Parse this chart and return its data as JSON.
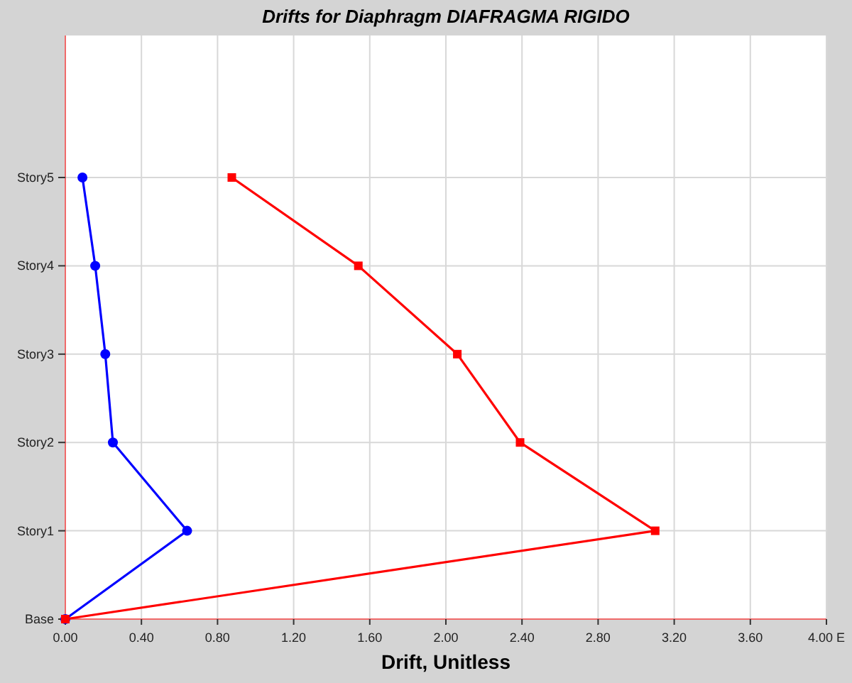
{
  "chart_data": {
    "type": "line",
    "orientation": "horizontal",
    "title": "Drifts for Diaphragm DIAFRAGMA RIGIDO",
    "xlabel": "Drift, Unitless",
    "xlim": [
      0,
      4
    ],
    "xticks": [
      {
        "value": 0,
        "label": "0.00"
      },
      {
        "value": 0.4,
        "label": "0.40"
      },
      {
        "value": 0.8,
        "label": "0.80"
      },
      {
        "value": 1.2,
        "label": "1.20"
      },
      {
        "value": 1.6,
        "label": "1.60"
      },
      {
        "value": 2,
        "label": "2.00"
      },
      {
        "value": 2.4,
        "label": "2.40"
      },
      {
        "value": 2.8,
        "label": "2.80"
      },
      {
        "value": 3.2,
        "label": "3.20"
      },
      {
        "value": 3.6,
        "label": "3.60"
      },
      {
        "value": 4,
        "label": "4.00 E"
      }
    ],
    "categories": [
      "Story5",
      "Story4",
      "Story3",
      "Story2",
      "Story1",
      "Base"
    ],
    "grid": true,
    "series": [
      {
        "color": "#0000ff",
        "marker": "circle",
        "values": [
          0.09,
          0.157,
          0.21,
          0.25,
          0.64,
          0
        ]
      },
      {
        "color": "#ff0000",
        "marker": "square",
        "values": [
          0.875,
          1.54,
          2.06,
          2.39,
          3.1,
          0
        ]
      }
    ]
  }
}
